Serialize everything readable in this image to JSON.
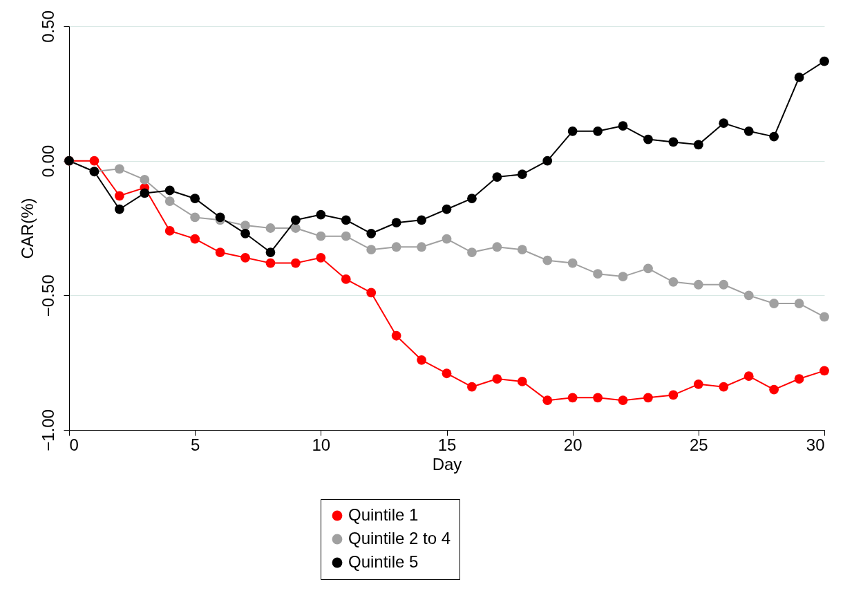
{
  "chart_data": {
    "type": "line",
    "xlabel": "Day",
    "ylabel": "CAR(%)",
    "x": [
      0,
      1,
      2,
      3,
      4,
      5,
      6,
      7,
      8,
      9,
      10,
      11,
      12,
      13,
      14,
      15,
      16,
      17,
      18,
      19,
      20,
      21,
      22,
      23,
      24,
      25,
      26,
      27,
      28,
      29,
      30
    ],
    "series": [
      {
        "name": "Quintile 1",
        "color": "#ff0000",
        "values": [
          0,
          0,
          -0.13,
          -0.1,
          -0.26,
          -0.29,
          -0.34,
          -0.36,
          -0.38,
          -0.38,
          -0.36,
          -0.44,
          -0.49,
          -0.65,
          -0.74,
          -0.79,
          -0.84,
          -0.81,
          -0.82,
          -0.89,
          -0.88,
          -0.88,
          -0.89,
          -0.88,
          -0.87,
          -0.83,
          -0.84,
          -0.8,
          -0.85,
          -0.81,
          -0.78
        ]
      },
      {
        "name": "Quintile 2 to 4",
        "color": "#a0a0a0",
        "values": [
          0,
          -0.04,
          -0.03,
          -0.07,
          -0.15,
          -0.21,
          -0.22,
          -0.24,
          -0.25,
          -0.25,
          -0.28,
          -0.28,
          -0.33,
          -0.32,
          -0.32,
          -0.29,
          -0.34,
          -0.32,
          -0.33,
          -0.37,
          -0.38,
          -0.42,
          -0.43,
          -0.4,
          -0.45,
          -0.46,
          -0.46,
          -0.5,
          -0.53,
          -0.53,
          -0.58
        ]
      },
      {
        "name": "Quintile 5",
        "color": "#000000",
        "values": [
          0,
          -0.04,
          -0.18,
          -0.12,
          -0.11,
          -0.14,
          -0.21,
          -0.27,
          -0.34,
          -0.22,
          -0.2,
          -0.22,
          -0.27,
          -0.23,
          -0.22,
          -0.18,
          -0.14,
          -0.06,
          -0.05,
          0,
          0.11,
          0.11,
          0.13,
          0.08,
          0.07,
          0.06,
          0.14,
          0.11,
          0.09,
          0.31,
          0.37
        ]
      }
    ],
    "xlim": [
      0,
      30
    ],
    "xticks": [
      0,
      5,
      10,
      15,
      20,
      25,
      30
    ],
    "ylim": [
      -1,
      0.5
    ],
    "yticks": [
      {
        "value": -1,
        "label": "−1.00"
      },
      {
        "value": -0.5,
        "label": "−0.50"
      },
      {
        "value": 0,
        "label": "0.00"
      },
      {
        "value": 0.5,
        "label": "0.50"
      }
    ],
    "grid": "y",
    "legend": "bottom",
    "marker": "circle",
    "line_style": "solid"
  }
}
